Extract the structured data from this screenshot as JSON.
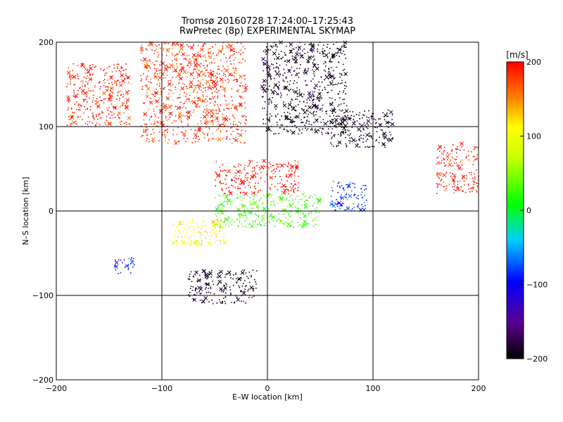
{
  "chart_data": {
    "type": "scatter",
    "title": "Tromsø 20160728 17:24:00–17:25:43",
    "subtitle": "RwPretec (8p) EXPERIMENTAL SKYMAP",
    "xlabel": "E–W location [km]",
    "ylabel": "N–S location [km]",
    "xlim": [
      -200,
      200
    ],
    "ylim": [
      -200,
      200
    ],
    "x_ticks": [
      -200,
      -100,
      0,
      100,
      200
    ],
    "y_ticks": [
      -200,
      -100,
      0,
      100,
      200
    ],
    "x_tick_labels": [
      "−200",
      "−100",
      "0",
      "100",
      "200"
    ],
    "y_tick_labels": [
      "−200",
      "−100",
      "0",
      "100",
      "200"
    ],
    "grid": true,
    "markers": [
      "dot",
      "x"
    ],
    "colorbar": {
      "label": "[m/s]",
      "range": [
        -200,
        200
      ],
      "ticks": [
        200,
        100,
        0,
        -100,
        -200
      ],
      "tick_labels": [
        "200",
        "100",
        "0",
        "−100",
        "−200"
      ],
      "colormap": "black-purple-blue-cyan-green-yellow-red"
    },
    "clusters": [
      {
        "name": "north-west red arc",
        "x": [
          -190,
          -130
        ],
        "y": [
          100,
          175
        ],
        "velocity": 190
      },
      {
        "name": "north-central red",
        "x": [
          -120,
          -20
        ],
        "y": [
          80,
          200
        ],
        "velocity": 180
      },
      {
        "name": "north-east black",
        "x": [
          -5,
          75
        ],
        "y": [
          90,
          200
        ],
        "velocity": -200
      },
      {
        "name": "east black band",
        "x": [
          60,
          120
        ],
        "y": [
          75,
          120
        ],
        "velocity": -200
      },
      {
        "name": "central red",
        "x": [
          -50,
          30
        ],
        "y": [
          20,
          60
        ],
        "velocity": 200
      },
      {
        "name": "far-east red",
        "x": [
          160,
          200
        ],
        "y": [
          20,
          80
        ],
        "velocity": 195
      },
      {
        "name": "central green-cyan",
        "x": [
          -50,
          50
        ],
        "y": [
          -20,
          20
        ],
        "velocity": 20
      },
      {
        "name": "east blue",
        "x": [
          60,
          95
        ],
        "y": [
          0,
          35
        ],
        "velocity": -90
      },
      {
        "name": "south-west yellow",
        "x": [
          -90,
          -40
        ],
        "y": [
          -40,
          -10
        ],
        "velocity": 110
      },
      {
        "name": "south purple-black",
        "x": [
          -75,
          -10
        ],
        "y": [
          -110,
          -70
        ],
        "velocity": -200
      },
      {
        "name": "west cyan-blue",
        "x": [
          -145,
          -125
        ],
        "y": [
          -75,
          -55
        ],
        "velocity": -100
      }
    ]
  }
}
